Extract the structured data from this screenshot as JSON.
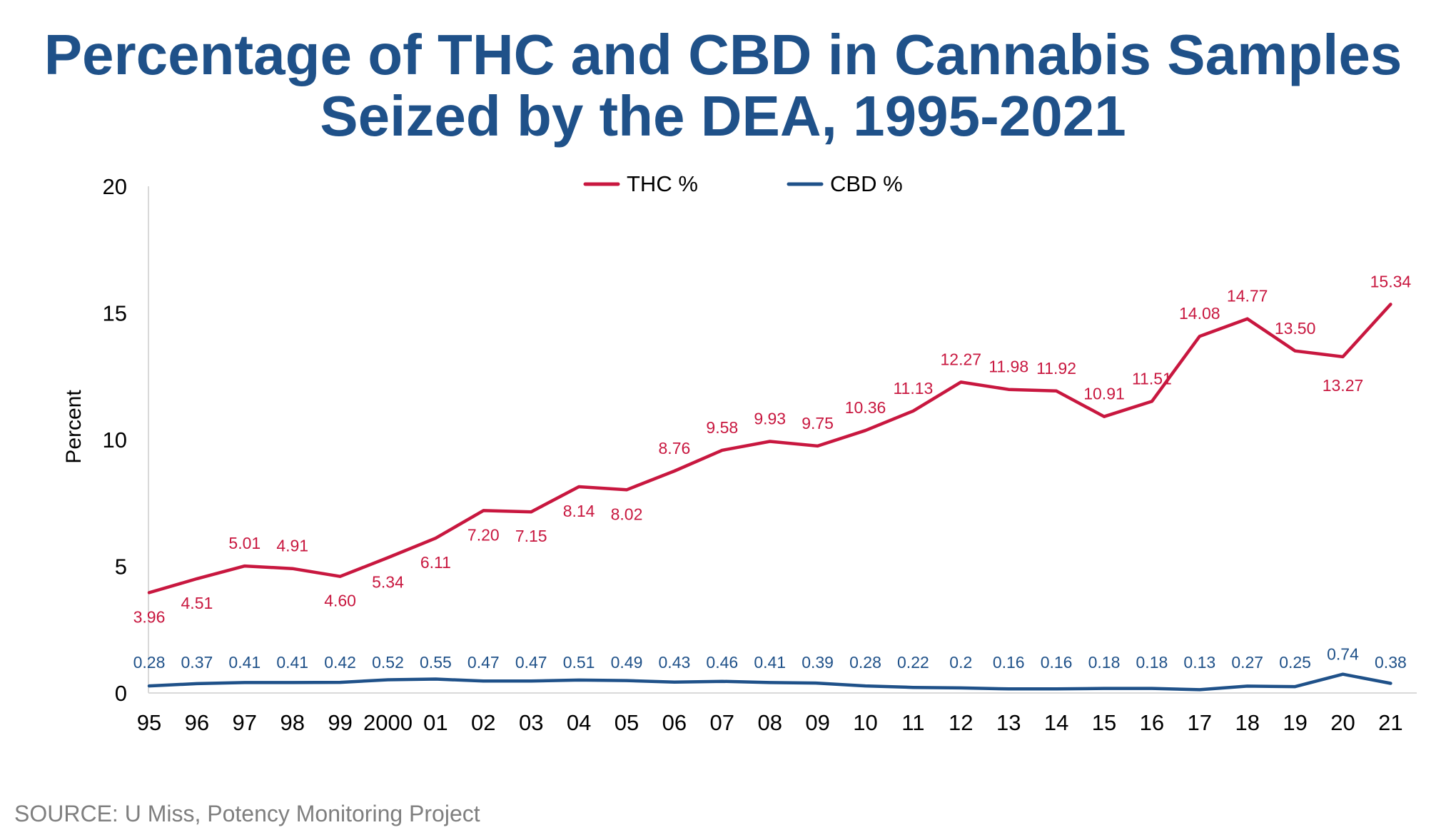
{
  "chart_data": {
    "type": "line",
    "title": [
      "Percentage of THC and CBD in Cannabis Samples",
      "Seized by the DEA, 1995-2021"
    ],
    "xlabel": "",
    "ylabel": "Percent",
    "categories": [
      "95",
      "96",
      "97",
      "98",
      "99",
      "2000",
      "01",
      "02",
      "03",
      "04",
      "05",
      "06",
      "07",
      "08",
      "09",
      "10",
      "11",
      "12",
      "13",
      "14",
      "15",
      "16",
      "17",
      "18",
      "19",
      "20",
      "21"
    ],
    "ylim": [
      0,
      20
    ],
    "yticks": [
      "0",
      "5",
      "10",
      "15",
      "20"
    ],
    "grid": false,
    "legend_position": "top-center",
    "series": [
      {
        "name": "THC %",
        "color": "#c8173f",
        "values": [
          3.96,
          4.51,
          5.01,
          4.91,
          4.6,
          5.34,
          6.11,
          7.2,
          7.15,
          8.14,
          8.02,
          8.76,
          9.58,
          9.93,
          9.75,
          10.36,
          11.13,
          12.27,
          11.98,
          11.92,
          10.91,
          11.51,
          14.08,
          14.77,
          13.5,
          13.27,
          15.34
        ],
        "labels": [
          "3.96",
          "4.51",
          "5.01",
          "4.91",
          "4.60",
          "5.34",
          "6.11",
          "7.20",
          "7.15",
          "8.14",
          "8.02",
          "8.76",
          "9.58",
          "9.93",
          "9.75",
          "10.36",
          "11.13",
          "12.27",
          "11.98",
          "11.92",
          "10.91",
          "11.51",
          "14.08",
          "14.77",
          "13.50",
          "13.27",
          "15.34"
        ]
      },
      {
        "name": "CBD %",
        "color": "#1f5189",
        "values": [
          0.28,
          0.37,
          0.41,
          0.41,
          0.42,
          0.52,
          0.55,
          0.47,
          0.47,
          0.51,
          0.49,
          0.43,
          0.46,
          0.41,
          0.39,
          0.28,
          0.22,
          0.2,
          0.16,
          0.16,
          0.18,
          0.18,
          0.13,
          0.27,
          0.25,
          0.74,
          0.38
        ],
        "labels": [
          "0.28",
          "0.37",
          "0.41",
          "0.41",
          "0.42",
          "0.52",
          "0.55",
          "0.47",
          "0.47",
          "0.51",
          "0.49",
          "0.43",
          "0.46",
          "0.41",
          "0.39",
          "0.28",
          "0.22",
          "0.2",
          "0.16",
          "0.16",
          "0.18",
          "0.18",
          "0.13",
          "0.27",
          "0.25",
          "0.74",
          "0.38"
        ]
      }
    ]
  },
  "footer": {
    "source": "SOURCE: U Miss, Potency Monitoring Project"
  }
}
